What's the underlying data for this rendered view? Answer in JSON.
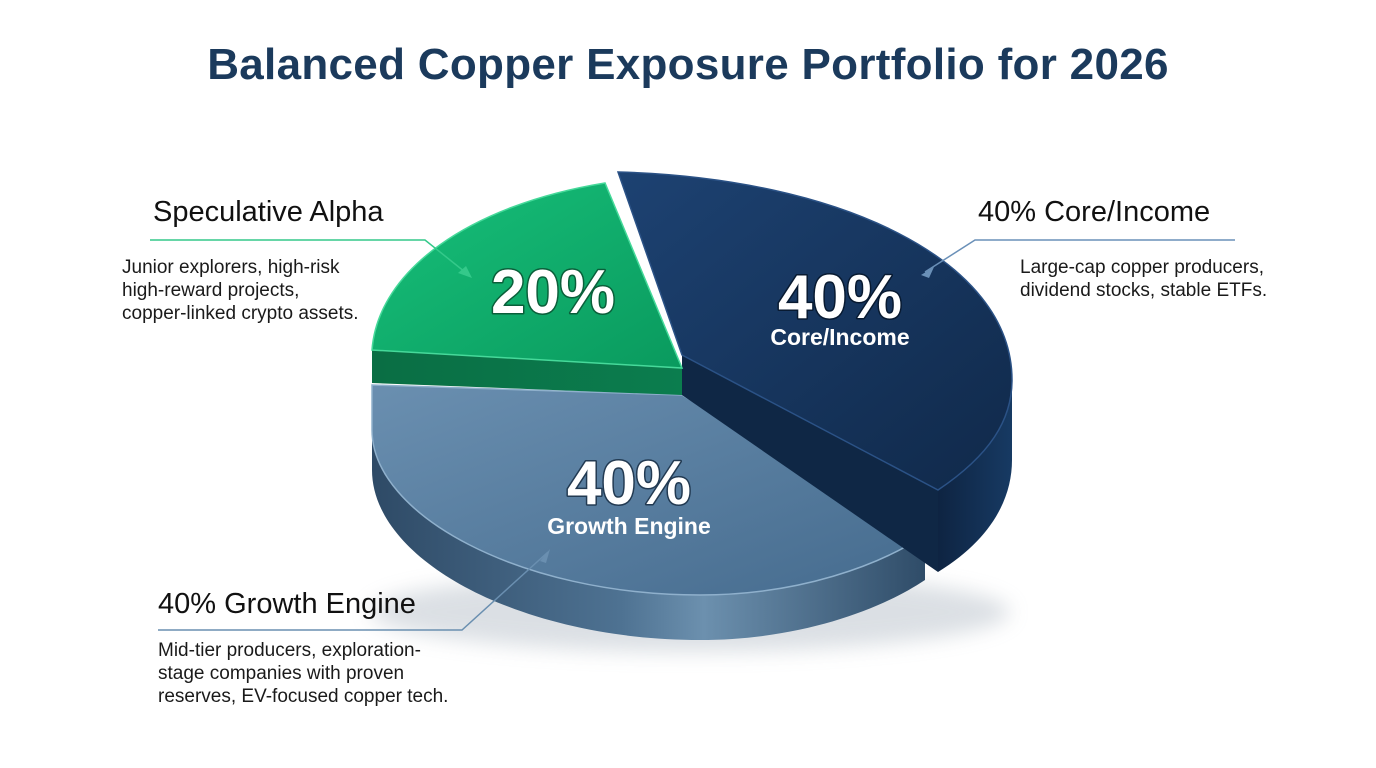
{
  "title": "Balanced Copper Exposure Portfolio for 2026",
  "chart_data": {
    "type": "pie",
    "title": "Balanced Copper Exposure Portfolio for 2026",
    "slices": [
      {
        "label": "Core/Income",
        "value": 40,
        "pct_label": "40%",
        "sub_label": "Core/Income",
        "color": "#13325a"
      },
      {
        "label": "Growth Engine",
        "value": 40,
        "pct_label": "40%",
        "sub_label": "Growth Engine",
        "color": "#4f7699"
      },
      {
        "label": "Speculative Alpha",
        "value": 20,
        "pct_label": "20%",
        "sub_label": "",
        "color": "#0fa86a"
      }
    ]
  },
  "callouts": {
    "speculative": {
      "title": "Speculative Alpha",
      "lines": [
        "Junior explorers, high-risk",
        "high-reward projects,",
        "copper-linked crypto assets."
      ]
    },
    "core": {
      "title": "40% Core/Income",
      "lines": [
        "Large-cap copper producers,",
        "dividend stocks, stable ETFs."
      ]
    },
    "growth": {
      "title": "40% Growth Engine",
      "lines": [
        "Mid-tier producers, exploration-",
        "stage companies with proven",
        "reserves, EV-focused copper tech."
      ]
    }
  }
}
